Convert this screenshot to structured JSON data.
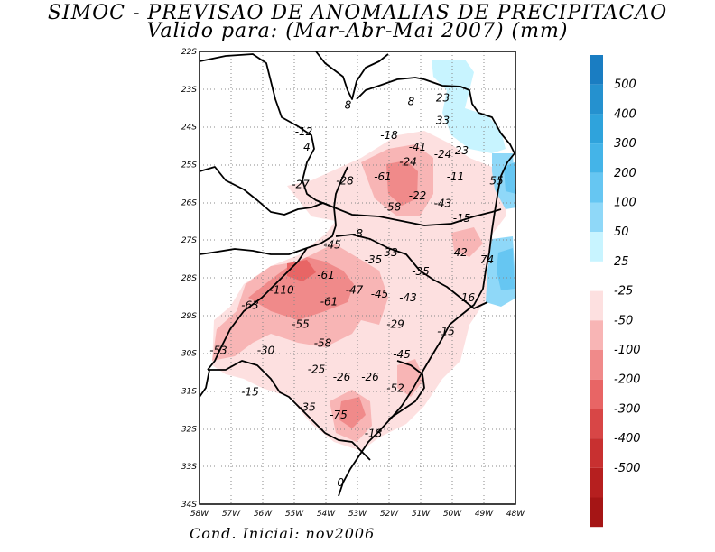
{
  "title_line1": "SIMOC - PREVISAO DE ANOMALIAS DE PRECIPITACAO",
  "title_line2": "Valido para: (Mar-Abr-Mai 2007) (mm)",
  "footer": "Cond. Inicial: nov2006",
  "lat_labels": [
    "22S",
    "23S",
    "24S",
    "25S",
    "26S",
    "27S",
    "28S",
    "29S",
    "30S",
    "31S",
    "32S",
    "33S",
    "34S"
  ],
  "lon_labels": [
    "58W",
    "57W",
    "56W",
    "55W",
    "54W",
    "53W",
    "52W",
    "51W",
    "50W",
    "49W",
    "48W"
  ],
  "values": [
    {
      "text": "8",
      "lon": -53.3,
      "lat": -23.5
    },
    {
      "text": "8",
      "lon": -51.3,
      "lat": -23.4
    },
    {
      "text": "23",
      "lon": -50.3,
      "lat": -23.3
    },
    {
      "text": "33",
      "lon": -50.3,
      "lat": -23.9
    },
    {
      "text": "-12",
      "lon": -54.7,
      "lat": -24.2
    },
    {
      "text": "4",
      "lon": -54.6,
      "lat": -24.6
    },
    {
      "text": "-18",
      "lon": -52.0,
      "lat": -24.3
    },
    {
      "text": "-41",
      "lon": -51.1,
      "lat": -24.6
    },
    {
      "text": "-24",
      "lon": -50.3,
      "lat": -24.8
    },
    {
      "text": "23",
      "lon": -49.7,
      "lat": -24.7
    },
    {
      "text": "-24",
      "lon": -51.4,
      "lat": -25.0
    },
    {
      "text": "-61",
      "lon": -52.2,
      "lat": -25.4
    },
    {
      "text": "-11",
      "lon": -49.9,
      "lat": -25.4
    },
    {
      "text": "55",
      "lon": -48.6,
      "lat": -25.5
    },
    {
      "text": "-27",
      "lon": -54.8,
      "lat": -25.6
    },
    {
      "text": "-28",
      "lon": -53.4,
      "lat": -25.5
    },
    {
      "text": "-22",
      "lon": -51.1,
      "lat": -25.9
    },
    {
      "text": "-43",
      "lon": -50.3,
      "lat": -26.1
    },
    {
      "text": "-58",
      "lon": -51.9,
      "lat": -26.2
    },
    {
      "text": "-15",
      "lon": -49.7,
      "lat": -26.5
    },
    {
      "text": "-8",
      "lon": -53.0,
      "lat": -26.9
    },
    {
      "text": "-45",
      "lon": -53.8,
      "lat": -27.2
    },
    {
      "text": "-33",
      "lon": -52.0,
      "lat": -27.4
    },
    {
      "text": "-35",
      "lon": -52.5,
      "lat": -27.6
    },
    {
      "text": "-42",
      "lon": -49.8,
      "lat": -27.4
    },
    {
      "text": "74",
      "lon": -48.9,
      "lat": -27.6
    },
    {
      "text": "-35",
      "lon": -51.0,
      "lat": -27.9
    },
    {
      "text": "-61",
      "lon": -54.0,
      "lat": -28.0
    },
    {
      "text": "-110",
      "lon": -55.4,
      "lat": -28.4
    },
    {
      "text": "-47",
      "lon": -53.1,
      "lat": -28.4
    },
    {
      "text": "-45",
      "lon": -52.3,
      "lat": -28.5
    },
    {
      "text": "-43",
      "lon": -51.4,
      "lat": -28.6
    },
    {
      "text": "16",
      "lon": -49.5,
      "lat": -28.6
    },
    {
      "text": "-61",
      "lon": -53.9,
      "lat": -28.7
    },
    {
      "text": "-63",
      "lon": -56.4,
      "lat": -28.8
    },
    {
      "text": "-55",
      "lon": -54.8,
      "lat": -29.3
    },
    {
      "text": "-29",
      "lon": -51.8,
      "lat": -29.3
    },
    {
      "text": "-15",
      "lon": -50.2,
      "lat": -29.5
    },
    {
      "text": "-58",
      "lon": -54.1,
      "lat": -29.8
    },
    {
      "text": "-53",
      "lon": -57.4,
      "lat": -30.0
    },
    {
      "text": "-30",
      "lon": -55.9,
      "lat": -30.0
    },
    {
      "text": "-45",
      "lon": -51.6,
      "lat": -30.1
    },
    {
      "text": "-25",
      "lon": -54.3,
      "lat": -30.5
    },
    {
      "text": "-26",
      "lon": -53.5,
      "lat": -30.7
    },
    {
      "text": "-26",
      "lon": -52.6,
      "lat": -30.7
    },
    {
      "text": "-52",
      "lon": -51.8,
      "lat": -31.0
    },
    {
      "text": "-15",
      "lon": -56.4,
      "lat": -31.1
    },
    {
      "text": "-35",
      "lon": -54.6,
      "lat": -31.5
    },
    {
      "text": "-75",
      "lon": -53.6,
      "lat": -31.7
    },
    {
      "text": "-18",
      "lon": -52.5,
      "lat": -32.2
    },
    {
      "text": "-0",
      "lon": -53.6,
      "lat": -33.5
    }
  ],
  "legend": {
    "labels": [
      "500",
      "400",
      "300",
      "200",
      "100",
      "50",
      "25",
      "-25",
      "-50",
      "-100",
      "-200",
      "-300",
      "-400",
      "-500"
    ],
    "colors_pos": [
      "#1a7dc2",
      "#2591cf",
      "#2fa3dc",
      "#44b4e8",
      "#66c6f2",
      "#8fd8f8",
      "#c8f4ff"
    ],
    "colors_neg": [
      "#fde0e0",
      "#f8b5b5",
      "#f08a8a",
      "#e86565",
      "#d84646",
      "#c83030",
      "#b61f1f",
      "#a51515"
    ]
  },
  "colors": {
    "light_pink": "#fde0e0",
    "pink": "#f8b5b5",
    "red": "#f08a8a",
    "light_cyan": "#c8f4ff",
    "cyan": "#8fd8f8",
    "blue": "#66c6f2"
  }
}
